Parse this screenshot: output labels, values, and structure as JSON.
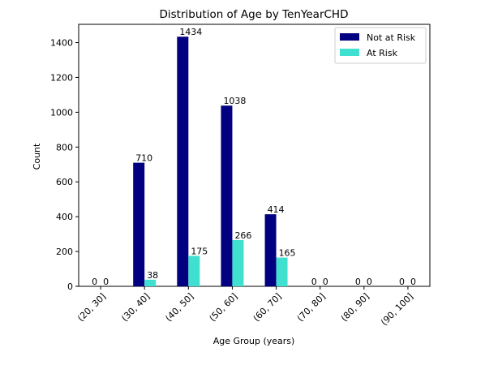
{
  "chart_data": {
    "type": "bar",
    "title": "Distribution of Age by TenYearCHD",
    "xlabel": "Age Group (years)",
    "ylabel": "Count",
    "categories": [
      "(20, 30]",
      "(30, 40]",
      "(40, 50]",
      "(50, 60]",
      "(60, 70]",
      "(70, 80]",
      "(80, 90]",
      "(90, 100]"
    ],
    "series": [
      {
        "name": "Not at Risk",
        "color": "#000080",
        "values": [
          0,
          710,
          1434,
          1038,
          414,
          0,
          0,
          0
        ]
      },
      {
        "name": "At Risk",
        "color": "#40e0d0",
        "values": [
          0,
          38,
          175,
          266,
          165,
          0,
          0,
          0
        ]
      }
    ],
    "ylim": [
      0,
      1505
    ],
    "yticks": [
      0,
      200,
      400,
      600,
      800,
      1000,
      1200,
      1400
    ],
    "legend_position": "top-right",
    "grid": false,
    "data_labels": true,
    "xtick_rotation": 45
  }
}
